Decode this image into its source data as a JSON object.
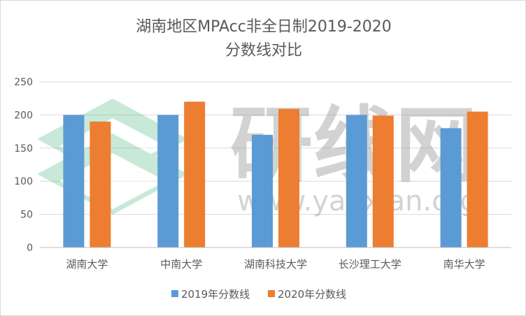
{
  "chart_data": {
    "type": "bar",
    "title_lines": [
      "湖南地区MPAcc非全日制2019-2020",
      "分数线对比"
    ],
    "categories": [
      "湖南大学",
      "中南大学",
      "湖南科技大学",
      "长沙理工大学",
      "南华大学"
    ],
    "series": [
      {
        "name": "2019年分数线",
        "color": "#5b9bd5",
        "values": [
          200,
          200,
          170,
          200,
          180
        ]
      },
      {
        "name": "2020年分数线",
        "color": "#ed7d31",
        "values": [
          190,
          220,
          209,
          199,
          205
        ]
      }
    ],
    "yticks": [
      0,
      50,
      100,
      150,
      200,
      250
    ],
    "ylim": [
      0,
      250
    ],
    "grid": true,
    "legend_position": "bottom"
  },
  "watermark": {
    "text": "研线网",
    "url": "www.yanxian.org",
    "logo_color": "#3cb371"
  }
}
